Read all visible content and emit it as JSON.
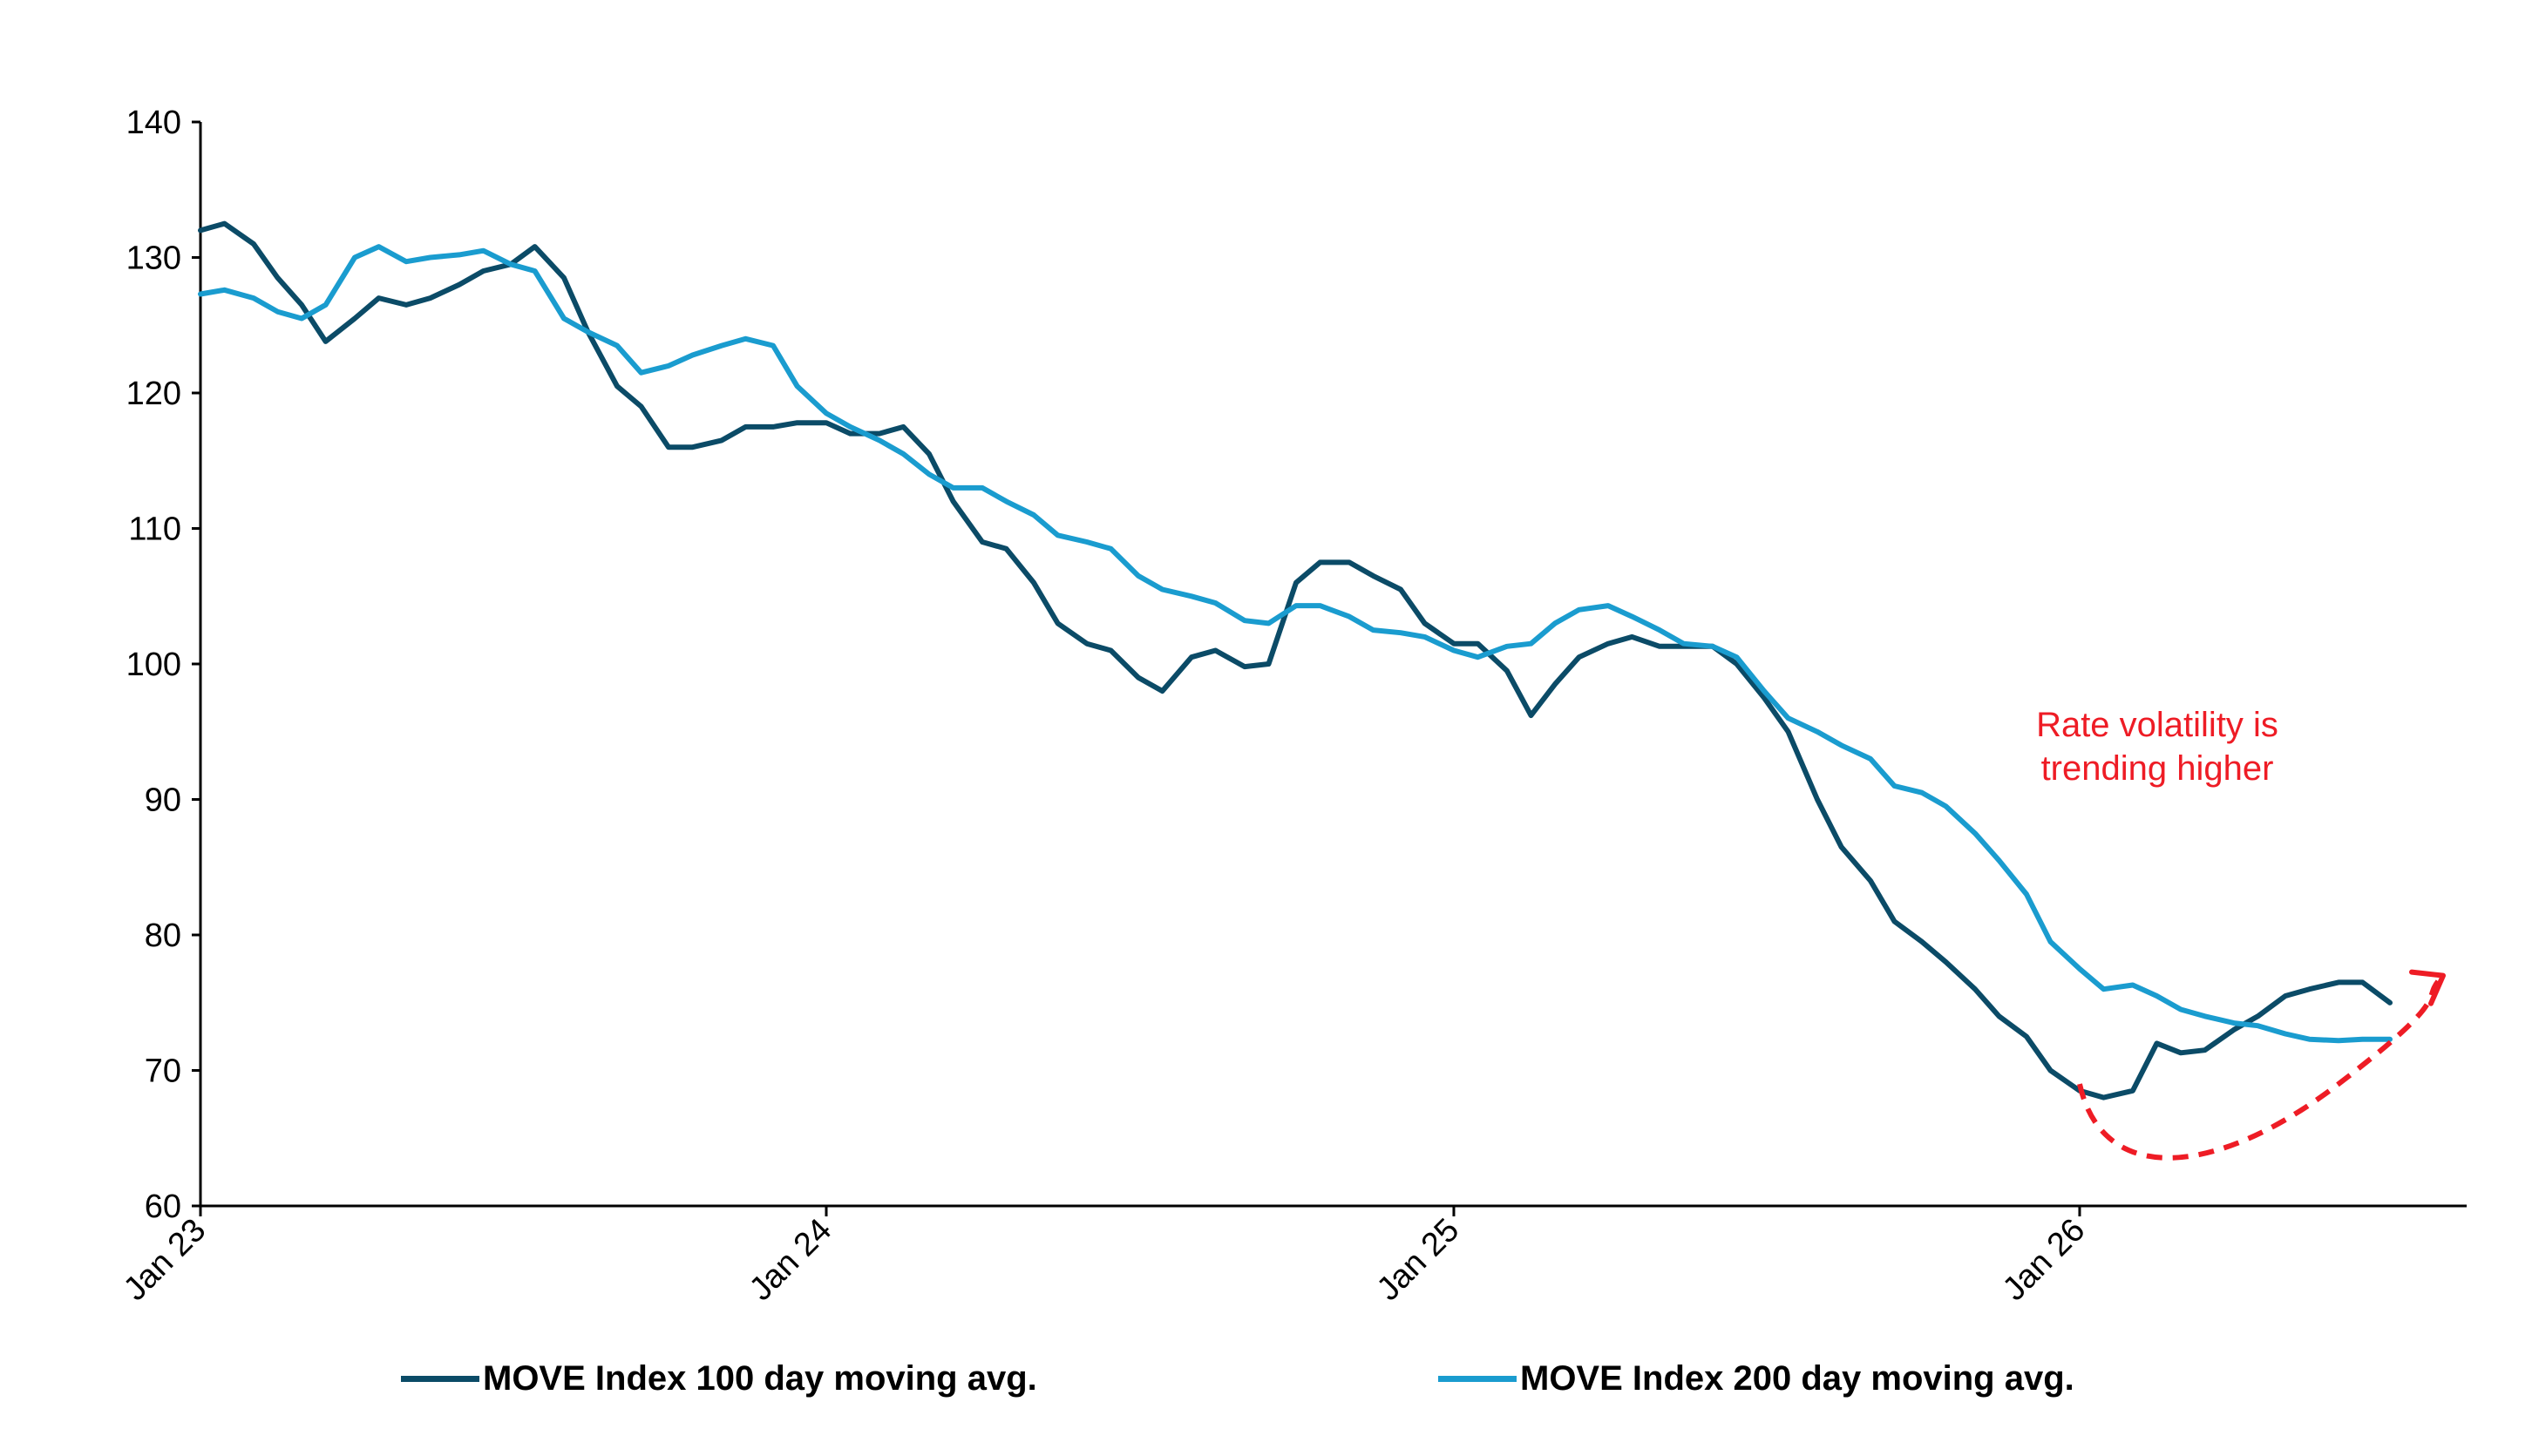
{
  "chart_data": {
    "type": "line",
    "x_tick_labels": [
      "Jan 23",
      "Jan 24",
      "Jan 25",
      "Jan 26"
    ],
    "xlim": [
      "2023-01",
      "2026-08"
    ],
    "ylim": [
      60,
      140
    ],
    "y_ticks": [
      "60",
      "70",
      "80",
      "90",
      "100",
      "110",
      "120",
      "130",
      "140"
    ],
    "grid": false,
    "legend_position": "bottom",
    "annotation": {
      "text_lines": [
        "Rate volatility is",
        "trending higher"
      ],
      "color": "#ee1c25",
      "arrow_points": [
        {
          "x": "2026-01",
          "y": 69
        },
        {
          "x": "2026-03",
          "y": 62.7
        },
        {
          "x": "2026-06",
          "y": 69
        },
        {
          "x": "2026-08",
          "y": 77
        }
      ]
    },
    "series": [
      {
        "name": "MOVE Index 100 day moving avg.",
        "color": "#0b4b67",
        "points": [
          [
            "2023-01",
            132.0
          ],
          [
            "2023-01-15",
            132.5
          ],
          [
            "2023-02",
            131.0
          ],
          [
            "2023-02-15",
            128.5
          ],
          [
            "2023-03",
            126.5
          ],
          [
            "2023-03-15",
            123.8
          ],
          [
            "2023-04",
            125.5
          ],
          [
            "2023-04-15",
            127.0
          ],
          [
            "2023-05",
            126.5
          ],
          [
            "2023-05-15",
            127.0
          ],
          [
            "2023-06",
            128.0
          ],
          [
            "2023-06-15",
            129.0
          ],
          [
            "2023-07",
            129.5
          ],
          [
            "2023-07-15",
            130.8
          ],
          [
            "2023-08",
            128.5
          ],
          [
            "2023-08-15",
            124.5
          ],
          [
            "2023-09",
            120.5
          ],
          [
            "2023-09-15",
            119.0
          ],
          [
            "2023-10",
            116.0
          ],
          [
            "2023-10-15",
            116.0
          ],
          [
            "2023-11",
            116.5
          ],
          [
            "2023-11-15",
            117.5
          ],
          [
            "2023-12",
            117.5
          ],
          [
            "2023-12-15",
            117.8
          ],
          [
            "2024-01",
            117.8
          ],
          [
            "2024-01-15",
            117.0
          ],
          [
            "2024-02",
            117.0
          ],
          [
            "2024-02-15",
            117.5
          ],
          [
            "2024-03",
            115.5
          ],
          [
            "2024-03-15",
            112.0
          ],
          [
            "2024-04",
            109.0
          ],
          [
            "2024-04-15",
            108.5
          ],
          [
            "2024-05",
            106.0
          ],
          [
            "2024-05-15",
            103.0
          ],
          [
            "2024-06",
            101.5
          ],
          [
            "2024-06-15",
            101.0
          ],
          [
            "2024-07",
            99.0
          ],
          [
            "2024-07-15",
            98.0
          ],
          [
            "2024-08",
            100.5
          ],
          [
            "2024-08-15",
            101.0
          ],
          [
            "2024-09",
            99.8
          ],
          [
            "2024-09-15",
            100.0
          ],
          [
            "2024-10",
            106.0
          ],
          [
            "2024-10-15",
            107.5
          ],
          [
            "2024-11",
            107.5
          ],
          [
            "2024-11-15",
            106.5
          ],
          [
            "2024-12",
            105.5
          ],
          [
            "2024-12-15",
            103.0
          ],
          [
            "2025-01",
            101.5
          ],
          [
            "2025-01-15",
            101.5
          ],
          [
            "2025-02",
            99.5
          ],
          [
            "2025-02-15",
            96.2
          ],
          [
            "2025-03",
            98.5
          ],
          [
            "2025-03-15",
            100.5
          ],
          [
            "2025-04",
            101.5
          ],
          [
            "2025-04-15",
            102.0
          ],
          [
            "2025-05",
            101.3
          ],
          [
            "2025-05-15",
            101.3
          ],
          [
            "2025-06",
            101.3
          ],
          [
            "2025-06-15",
            100.0
          ],
          [
            "2025-07",
            97.5
          ],
          [
            "2025-07-15",
            95.0
          ],
          [
            "2025-08",
            90.0
          ],
          [
            "2025-08-15",
            86.5
          ],
          [
            "2025-09",
            84.0
          ],
          [
            "2025-09-15",
            81.0
          ],
          [
            "2025-10",
            79.5
          ],
          [
            "2025-10-15",
            78.0
          ],
          [
            "2025-11",
            76.0
          ],
          [
            "2025-11-15",
            74.0
          ],
          [
            "2025-12",
            72.5
          ],
          [
            "2025-12-15",
            70.0
          ],
          [
            "2026-01",
            68.5
          ],
          [
            "2026-01-15",
            68.0
          ],
          [
            "2026-02",
            68.5
          ],
          [
            "2026-02-15",
            72.0
          ],
          [
            "2026-03",
            71.3
          ],
          [
            "2026-03-15",
            71.5
          ],
          [
            "2026-04",
            73.0
          ],
          [
            "2026-04-15",
            74.0
          ],
          [
            "2026-05",
            75.5
          ],
          [
            "2026-05-15",
            76.0
          ],
          [
            "2026-06",
            76.5
          ],
          [
            "2026-06-15",
            76.5
          ],
          [
            "2026-07",
            75.0
          ]
        ]
      },
      {
        "name": "MOVE Index 200 day moving avg.",
        "color": "#1a9ccf",
        "points": [
          [
            "2023-01",
            127.3
          ],
          [
            "2023-01-15",
            127.6
          ],
          [
            "2023-02",
            127.0
          ],
          [
            "2023-02-15",
            126.0
          ],
          [
            "2023-03",
            125.5
          ],
          [
            "2023-03-15",
            126.5
          ],
          [
            "2023-04",
            130.0
          ],
          [
            "2023-04-15",
            130.8
          ],
          [
            "2023-05",
            129.7
          ],
          [
            "2023-05-15",
            130.0
          ],
          [
            "2023-06",
            130.2
          ],
          [
            "2023-06-15",
            130.5
          ],
          [
            "2023-07",
            129.5
          ],
          [
            "2023-07-15",
            129.0
          ],
          [
            "2023-08",
            125.5
          ],
          [
            "2023-08-15",
            124.5
          ],
          [
            "2023-09",
            123.5
          ],
          [
            "2023-09-15",
            121.5
          ],
          [
            "2023-10",
            122.0
          ],
          [
            "2023-10-15",
            122.8
          ],
          [
            "2023-11",
            123.5
          ],
          [
            "2023-11-15",
            124.0
          ],
          [
            "2023-12",
            123.5
          ],
          [
            "2023-12-15",
            120.5
          ],
          [
            "2024-01",
            118.5
          ],
          [
            "2024-01-15",
            117.5
          ],
          [
            "2024-02",
            116.5
          ],
          [
            "2024-02-15",
            115.5
          ],
          [
            "2024-03",
            114.0
          ],
          [
            "2024-03-15",
            113.0
          ],
          [
            "2024-04",
            113.0
          ],
          [
            "2024-04-15",
            112.0
          ],
          [
            "2024-05",
            111.0
          ],
          [
            "2024-05-15",
            109.5
          ],
          [
            "2024-06",
            109.0
          ],
          [
            "2024-06-15",
            108.5
          ],
          [
            "2024-07",
            106.5
          ],
          [
            "2024-07-15",
            105.5
          ],
          [
            "2024-08",
            105.0
          ],
          [
            "2024-08-15",
            104.5
          ],
          [
            "2024-09",
            103.2
          ],
          [
            "2024-09-15",
            103.0
          ],
          [
            "2024-10",
            104.3
          ],
          [
            "2024-10-15",
            104.3
          ],
          [
            "2024-11",
            103.5
          ],
          [
            "2024-11-15",
            102.5
          ],
          [
            "2024-12",
            102.3
          ],
          [
            "2024-12-15",
            102.0
          ],
          [
            "2025-01",
            101.0
          ],
          [
            "2025-01-15",
            100.5
          ],
          [
            "2025-02",
            101.3
          ],
          [
            "2025-02-15",
            101.5
          ],
          [
            "2025-03",
            103.0
          ],
          [
            "2025-03-15",
            104.0
          ],
          [
            "2025-04",
            104.3
          ],
          [
            "2025-04-15",
            103.5
          ],
          [
            "2025-05",
            102.5
          ],
          [
            "2025-05-15",
            101.5
          ],
          [
            "2025-06",
            101.3
          ],
          [
            "2025-06-15",
            100.5
          ],
          [
            "2025-07",
            98.0
          ],
          [
            "2025-07-15",
            96.0
          ],
          [
            "2025-08",
            95.0
          ],
          [
            "2025-08-15",
            94.0
          ],
          [
            "2025-09",
            93.0
          ],
          [
            "2025-09-15",
            91.0
          ],
          [
            "2025-10",
            90.5
          ],
          [
            "2025-10-15",
            89.5
          ],
          [
            "2025-11",
            87.5
          ],
          [
            "2025-11-15",
            85.5
          ],
          [
            "2025-12",
            83.0
          ],
          [
            "2025-12-15",
            79.5
          ],
          [
            "2026-01",
            77.5
          ],
          [
            "2026-01-15",
            76.0
          ],
          [
            "2026-02",
            76.3
          ],
          [
            "2026-02-15",
            75.5
          ],
          [
            "2026-03",
            74.5
          ],
          [
            "2026-03-15",
            74.0
          ],
          [
            "2026-04",
            73.5
          ],
          [
            "2026-04-15",
            73.3
          ],
          [
            "2026-05",
            72.7
          ],
          [
            "2026-05-15",
            72.3
          ],
          [
            "2026-06",
            72.2
          ],
          [
            "2026-06-15",
            72.3
          ],
          [
            "2026-07",
            72.3
          ]
        ]
      }
    ]
  },
  "legend": {
    "items": [
      {
        "label": "MOVE Index 100 day moving avg.",
        "color": "#0b4b67"
      },
      {
        "label": "MOVE Index 200 day moving avg.",
        "color": "#1a9ccf"
      }
    ]
  }
}
